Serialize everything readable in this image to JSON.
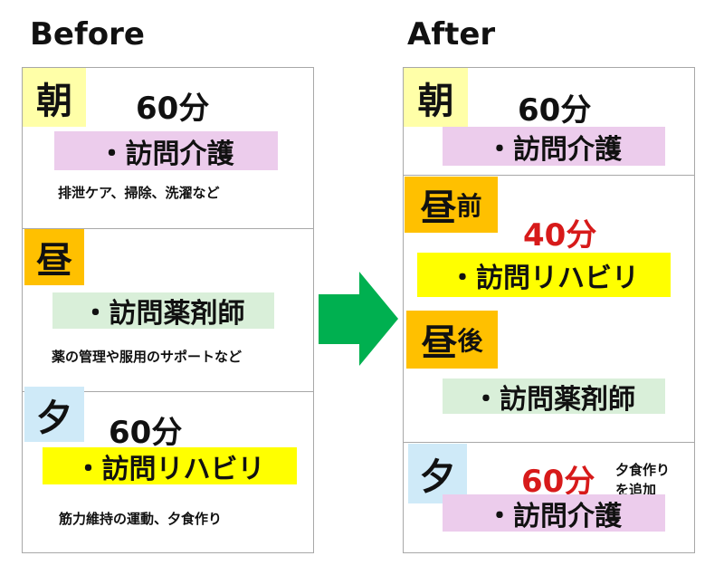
{
  "colors": {
    "morning": "#ffffa8",
    "noon": "#ffc000",
    "evening": "#cfeaf8",
    "care": "#ecccec",
    "pharmacist": "#d9efd9",
    "rehab": "#ffff00",
    "arrow": "#00b050",
    "highlight": "#d71a1a"
  },
  "before": {
    "title": "Before",
    "morning": {
      "label": "朝",
      "duration": "60分",
      "service": "・訪問介護",
      "detail": "排泄ケア、掃除、洗濯など"
    },
    "noon": {
      "label": "昼",
      "service": "・訪問薬剤師",
      "detail": "薬の管理や服用のサポートなど"
    },
    "evening": {
      "label": "夕",
      "duration": "60分",
      "service": "・訪問リハビリ",
      "detail": "筋力維持の運動、夕食作り"
    }
  },
  "arrow_icon": "right-arrow",
  "after": {
    "title": "After",
    "morning": {
      "label": "朝",
      "duration": "60分",
      "service": "・訪問介護"
    },
    "noon_before": {
      "label": "昼",
      "suffix": "前",
      "duration": "40分",
      "service": "・訪問リハビリ"
    },
    "noon_after": {
      "label": "昼",
      "suffix": "後",
      "service": "・訪問薬剤師"
    },
    "evening": {
      "label": "夕",
      "duration": "60分",
      "note_line1": "夕食作り",
      "note_line2": "を追加",
      "service": "・訪問介護"
    }
  }
}
